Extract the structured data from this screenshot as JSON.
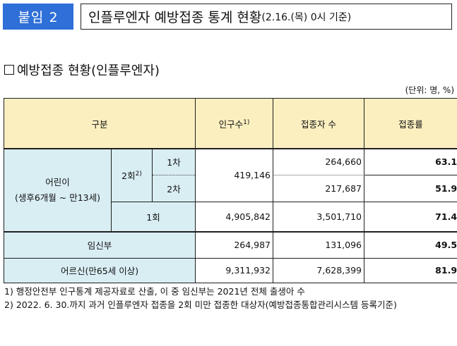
{
  "header": {
    "badge": "붙임 2",
    "title": "인플루엔자 예방접종 통계 현황",
    "title_sub": "(2.16.(목) 0시 기준)"
  },
  "section_title": "예방접종 현황(인플루엔자)",
  "unit": "(단위: 명, %)",
  "table": {
    "headers": {
      "category": "구분",
      "population": "인구수",
      "population_note": "1)",
      "vaccinated": "접종자 수",
      "rate": "접종률"
    },
    "children": {
      "label": "어린이",
      "sublabel": "(생후6개월 ~ 만13세)",
      "two_dose": "2회",
      "two_dose_note": "2)",
      "first": "1차",
      "second": "2차",
      "one_dose": "1회"
    },
    "rows": {
      "two_dose_population": "419,146",
      "first_vaccinated": "264,660",
      "first_rate": "63.1",
      "second_vaccinated": "217,687",
      "second_rate": "51.9",
      "one_dose_population": "4,905,842",
      "one_dose_vaccinated": "3,501,710",
      "one_dose_rate": "71.4"
    },
    "pregnant": {
      "label": "임신부",
      "population": "264,987",
      "vaccinated": "131,096",
      "rate": "49.5"
    },
    "elderly": {
      "label": "어르신(만65세 이상)",
      "population": "9,311,932",
      "vaccinated": "7,628,399",
      "rate": "81.9"
    }
  },
  "notes": {
    "note1": "1) 행정안전부 인구통계 제공자료로 산출, 이 중 임신부는 2021년 전체 출생아 수",
    "note2_prefix": "2)",
    "note2": "2022. 6. 30.까지 과거 인플루엔자 접종을 2회 미만 접종한 대상자(예방접종통합관리시스템 등록기준)"
  }
}
